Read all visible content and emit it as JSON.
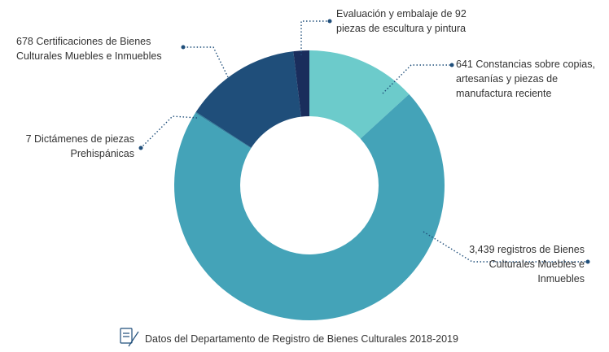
{
  "chart_data": {
    "type": "donut",
    "values": [
      641,
      3439,
      7,
      678,
      92
    ],
    "value_labels": [
      "641 Constancias sobre copias, artesanías y piezas de manufactura reciente",
      "3,439 registros de Bienes Culturales Muebles e Inmuebles",
      "7 Dictámenes de piezas Prehispánicas",
      "678 Certificaciones de Bienes Culturales Muebles e Inmuebles",
      "Evaluación y embalaje de 92 piezas de escultura y pintura"
    ],
    "colors": [
      "#6ccbcb",
      "#44a3b8",
      "#2e84a0",
      "#1f4e7a",
      "#1a2d5c"
    ],
    "source": "Datos del Departamento de Registro de Bienes Culturales 2018-2019"
  }
}
